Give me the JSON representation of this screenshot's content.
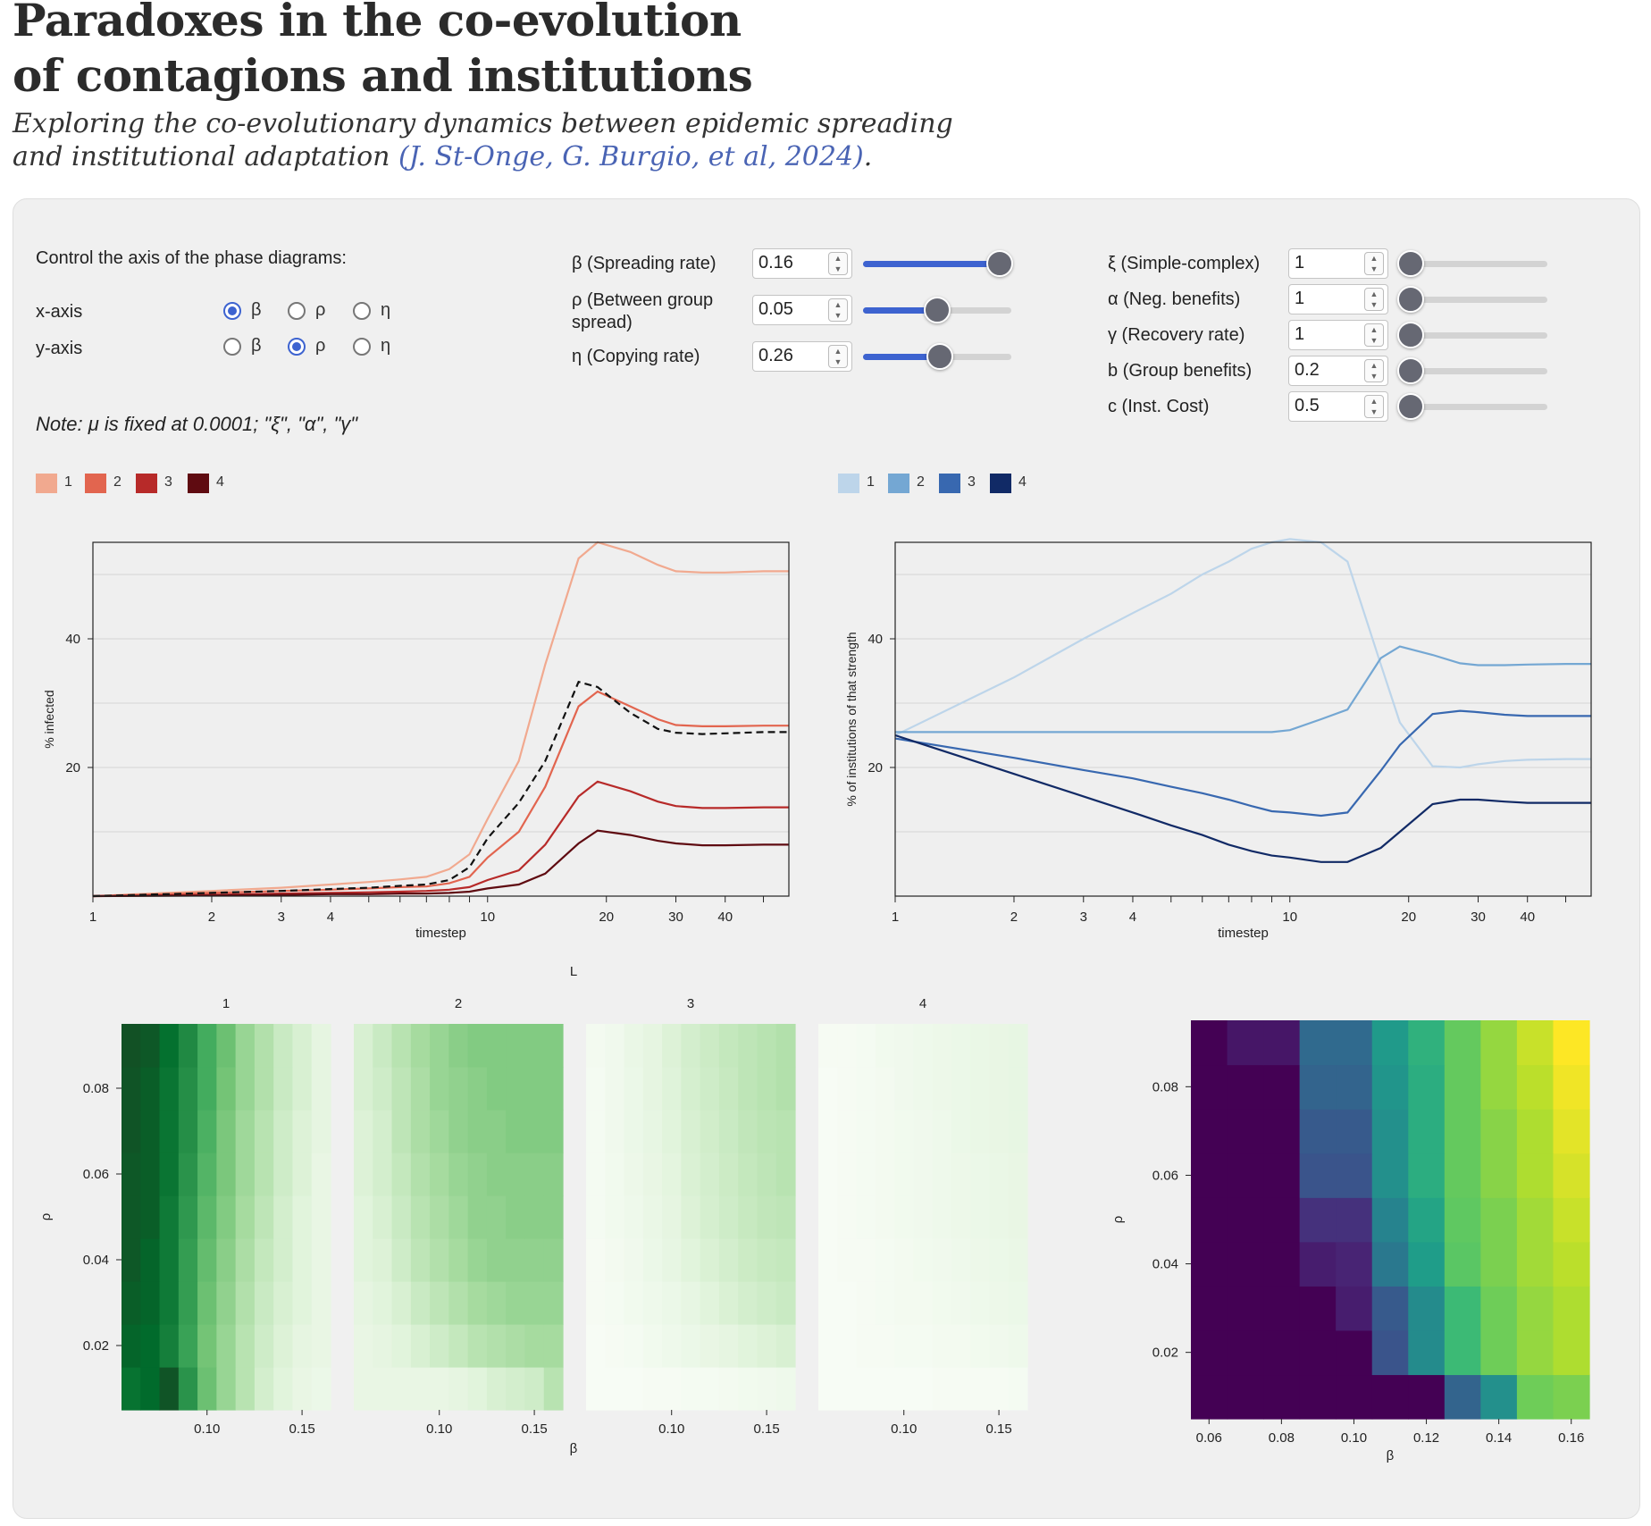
{
  "header": {
    "title_line1": "Paradoxes in the co-evolution",
    "title_line2": "of contagions and institutions",
    "subtitle_line1": "Exploring the co-evolutionary dynamics between epidemic spreading",
    "subtitle_line2": "and institutional adaptation ",
    "citation": "(J. St-Onge, G. Burgio, et al, 2024)",
    "subtitle_end": "."
  },
  "axis_controls": {
    "heading": "Control the axis of the phase diagrams:",
    "x_label": "x-axis",
    "y_label": "y-axis",
    "options": [
      "β",
      "ρ",
      "η"
    ],
    "x_selected": "β",
    "y_selected": "ρ"
  },
  "params_main": [
    {
      "label": "β (Spreading rate)",
      "value": "0.16",
      "fraction": 0.92
    },
    {
      "label_line1": "ρ (Between group",
      "label_line2": "spread)",
      "value": "0.05",
      "fraction": 0.5
    },
    {
      "label": "η (Copying rate)",
      "value": "0.26",
      "fraction": 0.52
    }
  ],
  "params_extra": [
    {
      "label": "ξ (Simple-complex)",
      "value": "1"
    },
    {
      "label": "α (Neg. benefits)",
      "value": "1"
    },
    {
      "label": "γ (Recovery rate)",
      "value": "1"
    },
    {
      "label": "b (Group benefits)",
      "value": "0.2"
    },
    {
      "label": "c (Inst. Cost)",
      "value": "0.5"
    }
  ],
  "note": "Note: μ is fixed at 0.0001; \"ξ\", \"α\", \"γ\"",
  "legend_reds": {
    "labels": [
      "1",
      "2",
      "3",
      "4"
    ],
    "colors": [
      "#f1a98f",
      "#e2654f",
      "#b72a29",
      "#5f0b11"
    ]
  },
  "legend_blues": {
    "labels": [
      "1",
      "2",
      "3",
      "4"
    ],
    "colors": [
      "#bdd5ea",
      "#74a7d3",
      "#3868b0",
      "#112a66"
    ]
  },
  "chart_data": [
    {
      "type": "line",
      "title": "",
      "xlabel": "timestep",
      "ylabel": "% infected",
      "xscale": "log",
      "xlim": [
        1,
        58
      ],
      "ylim": [
        0,
        55
      ],
      "x_ticks": [
        1,
        2,
        3,
        4,
        10,
        20,
        30,
        40
      ],
      "y_ticks": [
        20,
        40
      ],
      "x": [
        1,
        2,
        3,
        4,
        5,
        6,
        7,
        8,
        9,
        10,
        12,
        14,
        17,
        19,
        23,
        27,
        30,
        35,
        40,
        50,
        58
      ],
      "series": [
        {
          "name": "1",
          "color": "#f1a98f",
          "values": [
            0,
            0.8,
            1.3,
            1.8,
            2.2,
            2.6,
            3.0,
            4.2,
            6.5,
            12,
            21,
            36,
            52.5,
            55,
            53.5,
            51.5,
            50.5,
            50.3,
            50.3,
            50.5,
            50.5
          ]
        },
        {
          "name": "2",
          "color": "#e2654f",
          "values": [
            0,
            0.5,
            0.8,
            1.0,
            1.2,
            1.4,
            1.5,
            2.0,
            3.0,
            6,
            10,
            17,
            29.5,
            31.8,
            29.5,
            27.5,
            26.6,
            26.4,
            26.4,
            26.5,
            26.5
          ]
        },
        {
          "name": "3",
          "color": "#b72a29",
          "values": [
            0,
            0.2,
            0.4,
            0.5,
            0.6,
            0.7,
            0.8,
            1.0,
            1.4,
            2.5,
            4,
            8,
            15.5,
            17.8,
            16.3,
            14.7,
            14.0,
            13.7,
            13.7,
            13.8,
            13.8
          ]
        },
        {
          "name": "4",
          "color": "#5f0b11",
          "values": [
            0,
            0.1,
            0.2,
            0.3,
            0.3,
            0.4,
            0.4,
            0.5,
            0.7,
            1.2,
            1.8,
            3.5,
            8.2,
            10.2,
            9.5,
            8.6,
            8.2,
            7.9,
            7.9,
            8.0,
            8.0
          ]
        },
        {
          "name": "mean",
          "color": "#111111",
          "dashed": true,
          "values": [
            0,
            0.5,
            0.8,
            1.1,
            1.3,
            1.6,
            1.8,
            2.5,
            4.5,
            9,
            14.5,
            21,
            33.3,
            32.5,
            28.5,
            26,
            25.4,
            25.2,
            25.3,
            25.5,
            25.5
          ]
        }
      ]
    },
    {
      "type": "line",
      "title": "",
      "xlabel": "timestep",
      "ylabel": "% of institutions of that strength",
      "xscale": "log",
      "xlim": [
        1,
        58
      ],
      "ylim": [
        0,
        55
      ],
      "x_ticks": [
        1,
        2,
        3,
        4,
        10,
        20,
        30,
        40
      ],
      "y_ticks": [
        20,
        40
      ],
      "x": [
        1,
        2,
        3,
        4,
        5,
        6,
        7,
        8,
        9,
        10,
        12,
        14,
        17,
        19,
        23,
        27,
        30,
        35,
        40,
        50,
        58
      ],
      "series": [
        {
          "name": "1",
          "color": "#bdd5ea",
          "values": [
            25,
            34,
            40,
            44,
            47,
            50,
            52,
            54,
            55,
            55.5,
            55,
            52,
            36,
            27,
            20.2,
            20,
            20.5,
            21,
            21.2,
            21.3,
            21.3
          ]
        },
        {
          "name": "2",
          "color": "#74a7d3",
          "values": [
            25.5,
            25.5,
            25.5,
            25.5,
            25.5,
            25.5,
            25.5,
            25.5,
            25.5,
            25.8,
            27.5,
            29,
            37,
            38.8,
            37.5,
            36.2,
            35.9,
            35.9,
            36,
            36.1,
            36.1
          ]
        },
        {
          "name": "3",
          "color": "#3868b0",
          "values": [
            24.5,
            21.5,
            19.6,
            18.3,
            17,
            16,
            15,
            14,
            13.2,
            13,
            12.5,
            13,
            19.5,
            23.5,
            28.3,
            28.8,
            28.6,
            28.2,
            28.0,
            28.0,
            28.0
          ]
        },
        {
          "name": "4",
          "color": "#112a66",
          "values": [
            25,
            19,
            15.5,
            13,
            11,
            9.5,
            8,
            7,
            6.3,
            6,
            5.3,
            5.3,
            7.5,
            10,
            14.3,
            15,
            15,
            14.7,
            14.5,
            14.5,
            14.5
          ]
        }
      ]
    },
    {
      "type": "heatmap",
      "title": "L",
      "xlabel": "β",
      "ylabel": "ρ",
      "colormap": "greens",
      "panel_labels": [
        "1",
        "2",
        "3",
        "4"
      ],
      "x_ticks": [
        0.1,
        0.15
      ],
      "y_ticks": [
        0.02,
        0.04,
        0.06,
        0.08
      ],
      "x": [
        0.06,
        0.07,
        0.08,
        0.09,
        0.1,
        0.11,
        0.12,
        0.13,
        0.14,
        0.15,
        0.16
      ],
      "y": [
        0.01,
        0.02,
        0.03,
        0.04,
        0.05,
        0.06,
        0.07,
        0.08,
        0.09
      ],
      "panels": [
        {
          "name": "1",
          "grid": [
            [
              0.85,
              0.88,
              0.95,
              0.72,
              0.52,
              0.4,
              0.3,
              0.2,
              0.14,
              0.1,
              0.08
            ],
            [
              0.9,
              0.88,
              0.8,
              0.66,
              0.5,
              0.4,
              0.3,
              0.22,
              0.16,
              0.12,
              0.1
            ],
            [
              0.92,
              0.9,
              0.82,
              0.68,
              0.52,
              0.42,
              0.32,
              0.24,
              0.18,
              0.14,
              0.1
            ],
            [
              0.94,
              0.9,
              0.82,
              0.68,
              0.54,
              0.44,
              0.34,
              0.26,
              0.2,
              0.14,
              0.1
            ],
            [
              0.94,
              0.92,
              0.82,
              0.7,
              0.56,
              0.46,
              0.36,
              0.28,
              0.2,
              0.14,
              0.1
            ],
            [
              0.94,
              0.92,
              0.84,
              0.72,
              0.58,
              0.48,
              0.38,
              0.3,
              0.22,
              0.16,
              0.1
            ],
            [
              0.95,
              0.92,
              0.84,
              0.74,
              0.6,
              0.48,
              0.38,
              0.3,
              0.22,
              0.16,
              0.12
            ],
            [
              0.95,
              0.92,
              0.84,
              0.74,
              0.62,
              0.5,
              0.4,
              0.32,
              0.24,
              0.18,
              0.12
            ],
            [
              0.96,
              0.94,
              0.86,
              0.76,
              0.62,
              0.52,
              0.4,
              0.32,
              0.24,
              0.18,
              0.12
            ]
          ]
        },
        {
          "name": "2",
          "grid": [
            [
              0.1,
              0.1,
              0.1,
              0.1,
              0.1,
              0.12,
              0.14,
              0.18,
              0.2,
              0.22,
              0.3
            ],
            [
              0.1,
              0.12,
              0.14,
              0.18,
              0.22,
              0.26,
              0.3,
              0.32,
              0.34,
              0.36,
              0.36
            ],
            [
              0.12,
              0.14,
              0.18,
              0.24,
              0.28,
              0.32,
              0.36,
              0.38,
              0.4,
              0.4,
              0.4
            ],
            [
              0.14,
              0.16,
              0.22,
              0.28,
              0.32,
              0.36,
              0.4,
              0.42,
              0.42,
              0.42,
              0.42
            ],
            [
              0.14,
              0.18,
              0.24,
              0.3,
              0.34,
              0.38,
              0.42,
              0.42,
              0.44,
              0.44,
              0.44
            ],
            [
              0.16,
              0.2,
              0.26,
              0.32,
              0.36,
              0.4,
              0.42,
              0.44,
              0.44,
              0.44,
              0.44
            ],
            [
              0.16,
              0.2,
              0.28,
              0.34,
              0.38,
              0.42,
              0.44,
              0.44,
              0.46,
              0.46,
              0.46
            ],
            [
              0.18,
              0.22,
              0.28,
              0.34,
              0.4,
              0.42,
              0.44,
              0.46,
              0.46,
              0.46,
              0.46
            ],
            [
              0.18,
              0.24,
              0.3,
              0.36,
              0.4,
              0.44,
              0.46,
              0.46,
              0.46,
              0.46,
              0.46
            ]
          ]
        },
        {
          "name": "3",
          "grid": [
            [
              0.0,
              0.0,
              0.0,
              0.01,
              0.01,
              0.02,
              0.02,
              0.03,
              0.04,
              0.05,
              0.06
            ],
            [
              0.0,
              0.01,
              0.02,
              0.04,
              0.06,
              0.08,
              0.1,
              0.12,
              0.14,
              0.16,
              0.18
            ],
            [
              0.01,
              0.02,
              0.04,
              0.06,
              0.08,
              0.11,
              0.14,
              0.17,
              0.2,
              0.22,
              0.24
            ],
            [
              0.01,
              0.03,
              0.05,
              0.08,
              0.11,
              0.14,
              0.17,
              0.2,
              0.23,
              0.25,
              0.26
            ],
            [
              0.02,
              0.04,
              0.06,
              0.09,
              0.12,
              0.16,
              0.19,
              0.22,
              0.25,
              0.27,
              0.28
            ],
            [
              0.02,
              0.04,
              0.07,
              0.1,
              0.13,
              0.17,
              0.2,
              0.23,
              0.26,
              0.28,
              0.3
            ],
            [
              0.02,
              0.05,
              0.08,
              0.11,
              0.14,
              0.18,
              0.21,
              0.24,
              0.27,
              0.29,
              0.3
            ],
            [
              0.02,
              0.05,
              0.08,
              0.12,
              0.15,
              0.19,
              0.22,
              0.25,
              0.28,
              0.3,
              0.32
            ],
            [
              0.03,
              0.05,
              0.09,
              0.12,
              0.16,
              0.2,
              0.23,
              0.26,
              0.28,
              0.3,
              0.32
            ]
          ]
        },
        {
          "name": "4",
          "grid": [
            [
              0.0,
              0.0,
              0.0,
              0.0,
              0.0,
              0.0,
              0.01,
              0.01,
              0.01,
              0.01,
              0.02
            ],
            [
              0.0,
              0.0,
              0.01,
              0.01,
              0.02,
              0.02,
              0.03,
              0.03,
              0.04,
              0.05,
              0.06
            ],
            [
              0.0,
              0.0,
              0.01,
              0.02,
              0.03,
              0.03,
              0.04,
              0.05,
              0.06,
              0.07,
              0.08
            ],
            [
              0.0,
              0.01,
              0.01,
              0.02,
              0.03,
              0.04,
              0.05,
              0.06,
              0.07,
              0.08,
              0.09
            ],
            [
              0.0,
              0.01,
              0.02,
              0.03,
              0.04,
              0.05,
              0.06,
              0.07,
              0.08,
              0.09,
              0.1
            ],
            [
              0.0,
              0.01,
              0.02,
              0.03,
              0.04,
              0.05,
              0.06,
              0.07,
              0.08,
              0.09,
              0.1
            ],
            [
              0.0,
              0.01,
              0.02,
              0.03,
              0.04,
              0.05,
              0.06,
              0.08,
              0.09,
              0.1,
              0.11
            ],
            [
              0.0,
              0.01,
              0.02,
              0.03,
              0.05,
              0.06,
              0.07,
              0.08,
              0.09,
              0.1,
              0.11
            ],
            [
              0.01,
              0.01,
              0.02,
              0.04,
              0.05,
              0.06,
              0.07,
              0.08,
              0.09,
              0.1,
              0.11
            ]
          ]
        }
      ]
    },
    {
      "type": "heatmap",
      "title": "",
      "xlabel": "β",
      "ylabel": "ρ",
      "colormap": "viridis",
      "x_ticks": [
        0.06,
        0.08,
        0.1,
        0.12,
        0.14,
        0.16
      ],
      "y_ticks": [
        0.02,
        0.04,
        0.06,
        0.08
      ],
      "x": [
        0.06,
        0.07,
        0.08,
        0.09,
        0.1,
        0.11,
        0.12,
        0.13,
        0.14,
        0.15,
        0.16
      ],
      "y": [
        0.01,
        0.02,
        0.03,
        0.04,
        0.05,
        0.06,
        0.07,
        0.08,
        0.09
      ],
      "grid": [
        [
          0.0,
          0.0,
          0.0,
          0.0,
          0.0,
          0.0,
          0.0,
          0.32,
          0.5,
          0.78,
          0.8
        ],
        [
          0.0,
          0.0,
          0.0,
          0.0,
          0.0,
          0.26,
          0.48,
          0.68,
          0.78,
          0.84,
          0.88
        ],
        [
          0.0,
          0.0,
          0.0,
          0.0,
          0.08,
          0.28,
          0.48,
          0.68,
          0.78,
          0.84,
          0.88
        ],
        [
          0.0,
          0.0,
          0.0,
          0.08,
          0.1,
          0.4,
          0.55,
          0.74,
          0.8,
          0.86,
          0.9
        ],
        [
          0.0,
          0.0,
          0.0,
          0.14,
          0.14,
          0.45,
          0.58,
          0.75,
          0.8,
          0.86,
          0.92
        ],
        [
          0.0,
          0.0,
          0.0,
          0.26,
          0.26,
          0.5,
          0.62,
          0.76,
          0.82,
          0.88,
          0.94
        ],
        [
          0.0,
          0.0,
          0.0,
          0.28,
          0.28,
          0.5,
          0.62,
          0.76,
          0.82,
          0.88,
          0.96
        ],
        [
          0.0,
          0.0,
          0.0,
          0.32,
          0.32,
          0.52,
          0.62,
          0.76,
          0.84,
          0.9,
          0.98
        ],
        [
          0.0,
          0.06,
          0.06,
          0.34,
          0.34,
          0.54,
          0.64,
          0.76,
          0.84,
          0.92,
          1.0
        ]
      ]
    }
  ]
}
